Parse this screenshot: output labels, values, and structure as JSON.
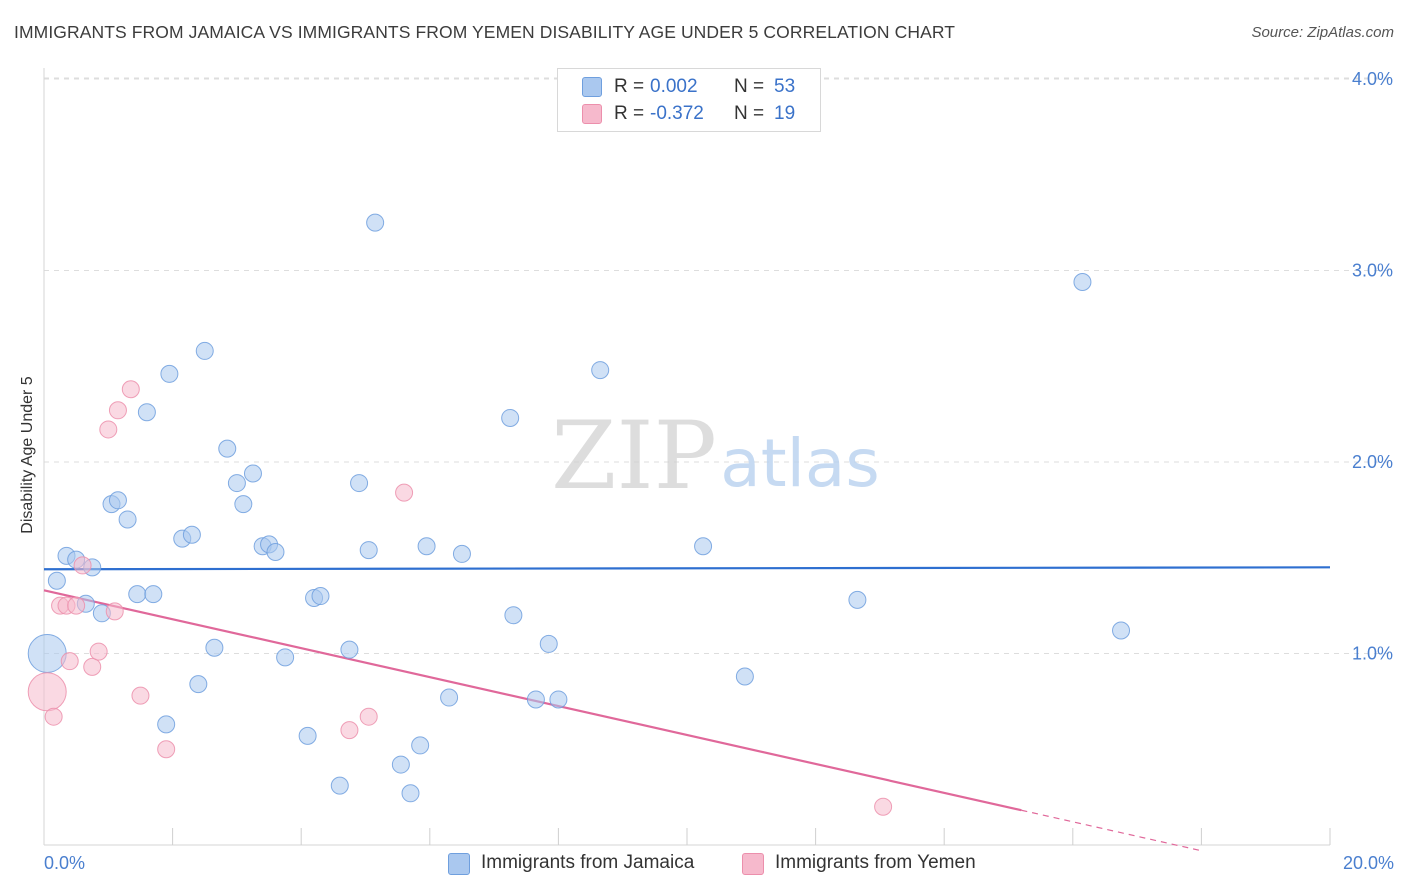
{
  "header": {
    "title": "IMMIGRANTS FROM JAMAICA VS IMMIGRANTS FROM YEMEN DISABILITY AGE UNDER 5 CORRELATION CHART",
    "source": "Source: ZipAtlas.com"
  },
  "watermark": {
    "zip": "ZIP",
    "atlas": "atlas"
  },
  "legend": {
    "r_label": "R =",
    "n_label": "N =",
    "rows": [
      {
        "r": "0.002",
        "n": "53"
      },
      {
        "r": "-0.372",
        "n": "19"
      }
    ]
  },
  "colors": {
    "jamaica_fill": "#aac8ef",
    "jamaica_stroke": "#6f9fde",
    "jamaica_line": "#2e6fd0",
    "yemen_fill": "#f6b9cc",
    "yemen_stroke": "#ec8fac",
    "yemen_line": "#e0689a",
    "tick_text": "#4a7fcf",
    "grid": "#dddddd"
  },
  "chart_data": {
    "type": "scatter",
    "title": "IMMIGRANTS FROM JAMAICA VS IMMIGRANTS FROM YEMEN DISABILITY AGE UNDER 5 CORRELATION CHART",
    "xlabel": "",
    "ylabel": "Disability Age Under 5",
    "xlim": [
      0,
      20
    ],
    "ylim": [
      0,
      4.1
    ],
    "x_tick_labels": {
      "left": "0.0%",
      "right": "20.0%"
    },
    "y_ticks": [
      {
        "value": 1,
        "label": "1.0%"
      },
      {
        "value": 2,
        "label": "2.0%"
      },
      {
        "value": 3,
        "label": "3.0%"
      },
      {
        "value": 4,
        "label": "4.0%"
      }
    ],
    "series": [
      {
        "name": "Immigrants from Jamaica",
        "r": 0.002,
        "n": 53,
        "trend": {
          "x0": 0,
          "y0": 1.44,
          "x1": 20,
          "y1": 1.45,
          "dash_from_x": null
        },
        "points": [
          {
            "x": 0.05,
            "y": 1.0,
            "big": true
          },
          {
            "x": 0.2,
            "y": 1.38
          },
          {
            "x": 0.35,
            "y": 1.51
          },
          {
            "x": 0.5,
            "y": 1.49
          },
          {
            "x": 0.65,
            "y": 1.26
          },
          {
            "x": 0.75,
            "y": 1.45
          },
          {
            "x": 0.9,
            "y": 1.21
          },
          {
            "x": 1.05,
            "y": 1.78
          },
          {
            "x": 1.15,
            "y": 1.8
          },
          {
            "x": 1.3,
            "y": 1.7
          },
          {
            "x": 1.45,
            "y": 1.31
          },
          {
            "x": 1.6,
            "y": 2.26
          },
          {
            "x": 1.7,
            "y": 1.31
          },
          {
            "x": 1.9,
            "y": 0.63
          },
          {
            "x": 1.95,
            "y": 2.46
          },
          {
            "x": 2.15,
            "y": 1.6
          },
          {
            "x": 2.3,
            "y": 1.62
          },
          {
            "x": 2.4,
            "y": 0.84
          },
          {
            "x": 2.5,
            "y": 2.58
          },
          {
            "x": 2.65,
            "y": 1.03
          },
          {
            "x": 2.85,
            "y": 2.07
          },
          {
            "x": 3.0,
            "y": 1.89
          },
          {
            "x": 3.1,
            "y": 1.78
          },
          {
            "x": 3.25,
            "y": 1.94
          },
          {
            "x": 3.4,
            "y": 1.56
          },
          {
            "x": 3.5,
            "y": 1.57
          },
          {
            "x": 3.6,
            "y": 1.53
          },
          {
            "x": 3.75,
            "y": 0.98
          },
          {
            "x": 4.1,
            "y": 0.57
          },
          {
            "x": 4.2,
            "y": 1.29
          },
          {
            "x": 4.3,
            "y": 1.3
          },
          {
            "x": 4.6,
            "y": 0.31
          },
          {
            "x": 4.75,
            "y": 1.02
          },
          {
            "x": 4.9,
            "y": 1.89
          },
          {
            "x": 5.05,
            "y": 1.54
          },
          {
            "x": 5.15,
            "y": 3.25
          },
          {
            "x": 5.55,
            "y": 0.42
          },
          {
            "x": 5.7,
            "y": 0.27
          },
          {
            "x": 5.85,
            "y": 0.52
          },
          {
            "x": 5.95,
            "y": 1.56
          },
          {
            "x": 6.3,
            "y": 0.77
          },
          {
            "x": 6.5,
            "y": 1.52
          },
          {
            "x": 7.25,
            "y": 2.23
          },
          {
            "x": 7.3,
            "y": 1.2
          },
          {
            "x": 7.65,
            "y": 0.76
          },
          {
            "x": 7.85,
            "y": 1.05
          },
          {
            "x": 8.0,
            "y": 0.76
          },
          {
            "x": 8.65,
            "y": 2.48
          },
          {
            "x": 10.25,
            "y": 1.56
          },
          {
            "x": 10.9,
            "y": 0.88
          },
          {
            "x": 12.65,
            "y": 1.28
          },
          {
            "x": 16.15,
            "y": 2.94
          },
          {
            "x": 16.75,
            "y": 1.12
          }
        ]
      },
      {
        "name": "Immigrants from Yemen",
        "r": -0.372,
        "n": 19,
        "trend": {
          "x0": 0,
          "y0": 1.33,
          "x1": 18,
          "y1": -0.03,
          "dash_from_x": 15.2
        },
        "points": [
          {
            "x": 0.05,
            "y": 0.8,
            "big": true
          },
          {
            "x": 0.15,
            "y": 0.67
          },
          {
            "x": 0.25,
            "y": 1.25
          },
          {
            "x": 0.35,
            "y": 1.25
          },
          {
            "x": 0.4,
            "y": 0.96
          },
          {
            "x": 0.5,
            "y": 1.25
          },
          {
            "x": 0.6,
            "y": 1.46
          },
          {
            "x": 0.75,
            "y": 0.93
          },
          {
            "x": 0.85,
            "y": 1.01
          },
          {
            "x": 1.0,
            "y": 2.17
          },
          {
            "x": 1.1,
            "y": 1.22
          },
          {
            "x": 1.15,
            "y": 2.27
          },
          {
            "x": 1.35,
            "y": 2.38
          },
          {
            "x": 1.5,
            "y": 0.78
          },
          {
            "x": 1.9,
            "y": 0.5
          },
          {
            "x": 4.75,
            "y": 0.6
          },
          {
            "x": 5.05,
            "y": 0.67
          },
          {
            "x": 5.6,
            "y": 1.84
          },
          {
            "x": 13.05,
            "y": 0.2
          }
        ]
      }
    ]
  },
  "bottom_legend": {
    "jamaica_label": "Immigrants from Jamaica",
    "yemen_label": "Immigrants from Yemen"
  }
}
